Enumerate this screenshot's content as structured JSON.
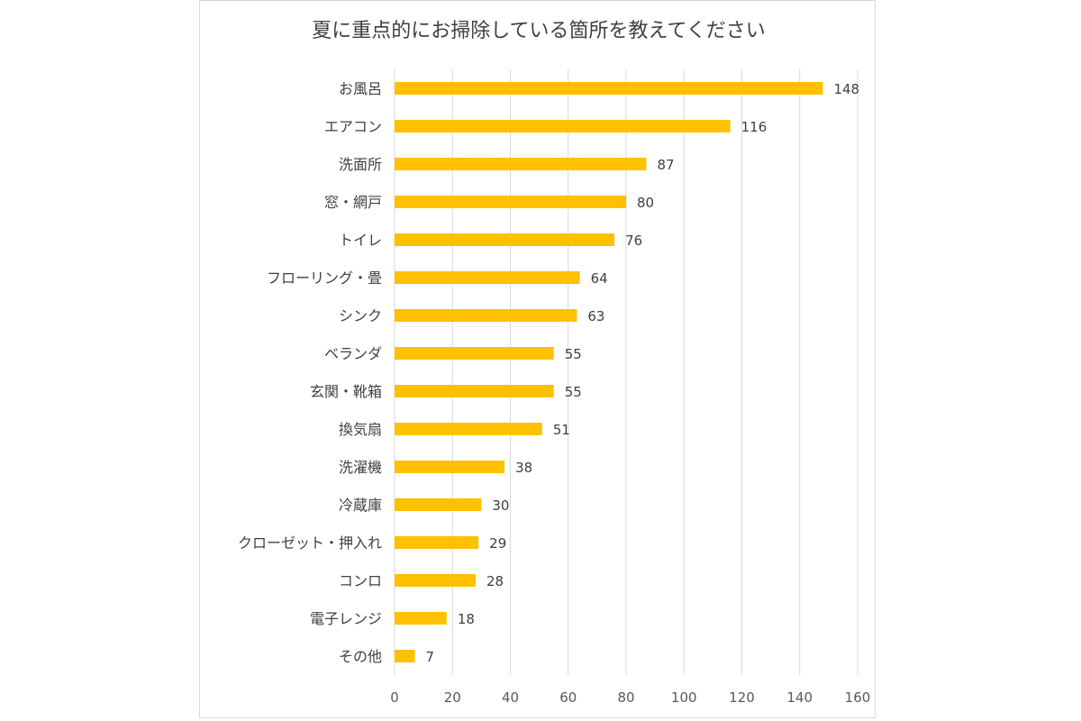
{
  "chart_data": {
    "type": "bar",
    "orientation": "horizontal",
    "title": "夏に重点的にお掃除している箇所を教えてください",
    "categories": [
      "お風呂",
      "エアコン",
      "洗面所",
      "窓・網戸",
      "トイレ",
      "フローリング・畳",
      "シンク",
      "ベランダ",
      "玄関・靴箱",
      "換気扇",
      "洗濯機",
      "冷蔵庫",
      "クローゼット・押入れ",
      "コンロ",
      "電子レンジ",
      "その他"
    ],
    "values": [
      148,
      116,
      87,
      80,
      76,
      64,
      63,
      55,
      55,
      51,
      38,
      30,
      29,
      28,
      18,
      7
    ],
    "xlim": [
      0,
      160
    ],
    "xticks": [
      0,
      20,
      40,
      60,
      80,
      100,
      120,
      140,
      160
    ],
    "xlabel": "",
    "ylabel": "",
    "grid": "vertical",
    "legend": "none",
    "data_labels": true,
    "bar_color": "#FFC000",
    "grid_color": "#d9d9d9",
    "text_color": "#404040"
  }
}
